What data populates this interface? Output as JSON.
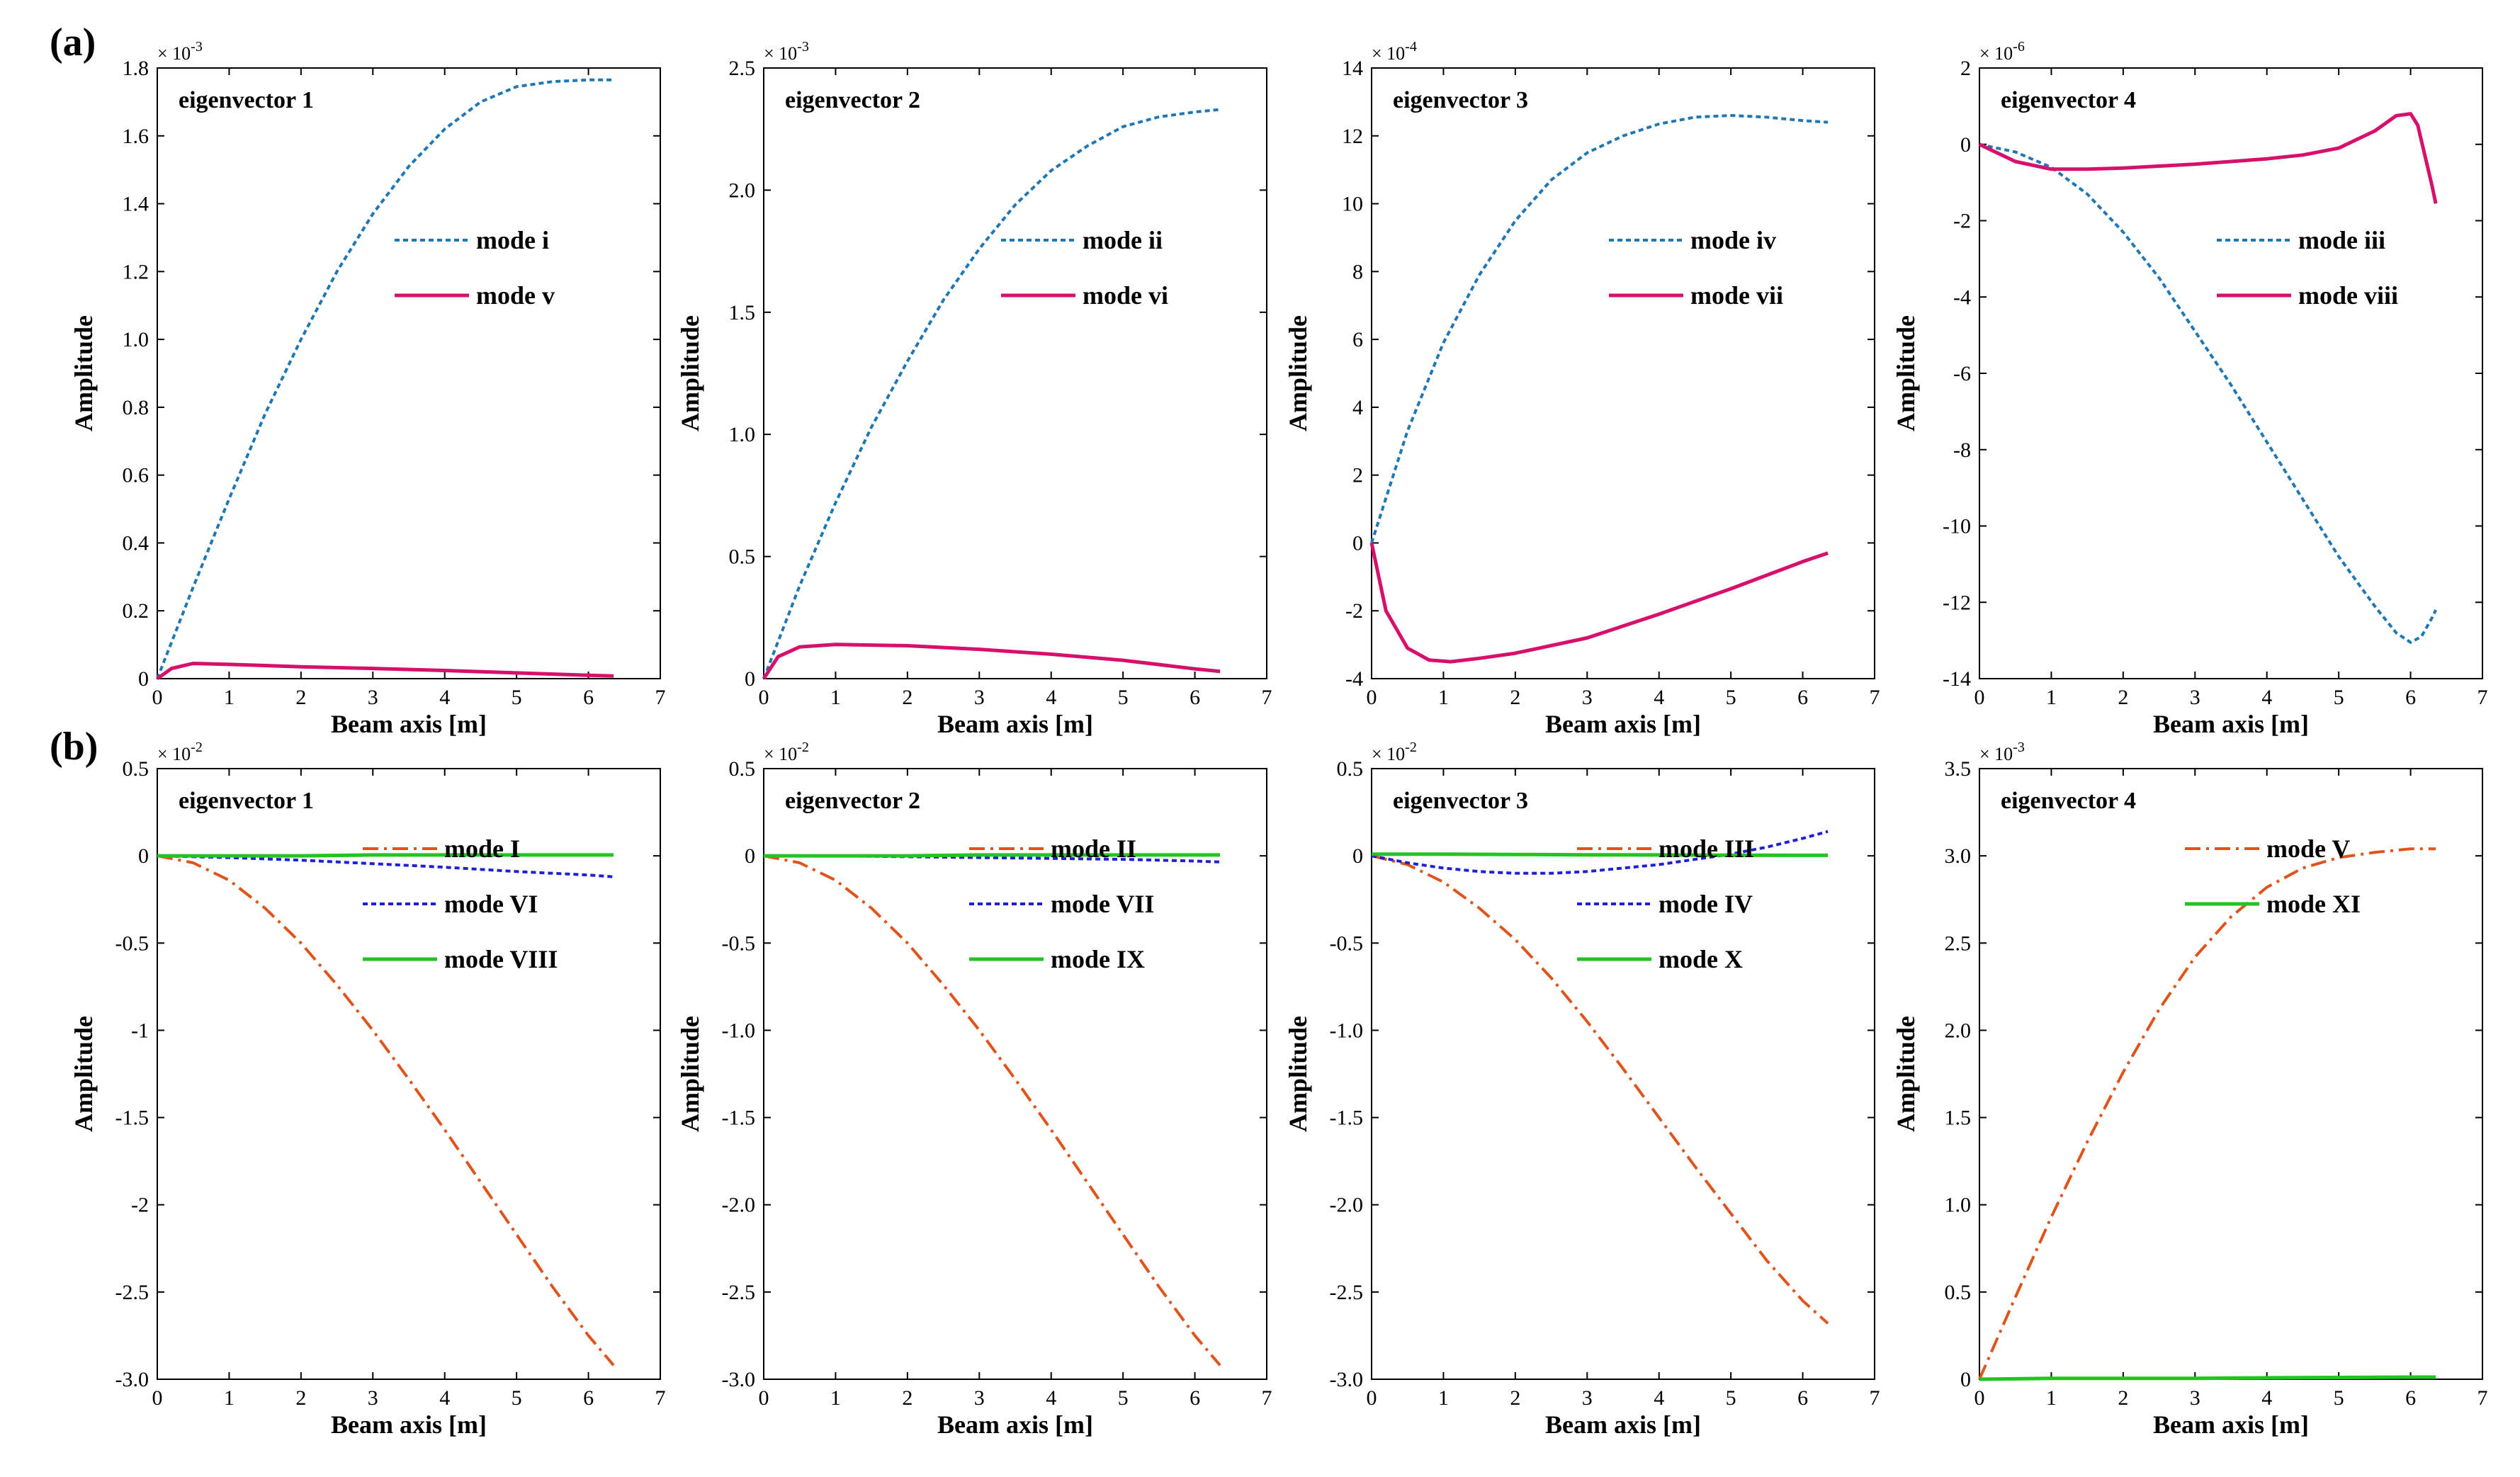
{
  "panel_labels": [
    "(a)",
    "(b)"
  ],
  "chart_data": [
    {
      "type": "line",
      "row": "a",
      "title": "eigenvector 1",
      "xlabel": "Beam axis [m]",
      "ylabel": "Amplitude",
      "sci_base": "× 10",
      "sci_exp": "-3",
      "xlim": [
        0,
        7
      ],
      "ylim": [
        0,
        1.8
      ],
      "xticks": [
        0,
        1,
        2,
        3,
        4,
        5,
        6,
        7
      ],
      "xtick_labels": [
        "0",
        "1",
        "2",
        "3",
        "4",
        "5",
        "6",
        "7"
      ],
      "yticks": [
        0,
        0.2,
        0.4,
        0.6,
        0.8,
        1.0,
        1.2,
        1.4,
        1.6,
        1.8
      ],
      "ytick_labels": [
        "0",
        "0.2",
        "0.4",
        "0.6",
        "0.8",
        "1.0",
        "1.2",
        "1.4",
        "1.6",
        "1.8"
      ],
      "series": [
        {
          "name": "mode i",
          "color": "#1f77b4",
          "style": "dotted",
          "x": [
            0,
            0.5,
            1,
            1.5,
            2,
            2.5,
            3,
            3.5,
            4,
            4.5,
            5,
            5.5,
            6,
            6.35
          ],
          "y": [
            0,
            0.27,
            0.53,
            0.78,
            1.0,
            1.2,
            1.37,
            1.51,
            1.62,
            1.7,
            1.745,
            1.76,
            1.765,
            1.765
          ]
        },
        {
          "name": "mode v",
          "color": "#d6106b",
          "style": "solid",
          "x": [
            0,
            0.2,
            0.5,
            1,
            2,
            3,
            4,
            5,
            6,
            6.35
          ],
          "y": [
            0,
            0.03,
            0.045,
            0.042,
            0.035,
            0.03,
            0.024,
            0.017,
            0.01,
            0.008
          ]
        }
      ]
    },
    {
      "type": "line",
      "row": "a",
      "title": "eigenvector 2",
      "xlabel": "Beam axis [m]",
      "ylabel": "Amplitude",
      "sci_base": "× 10",
      "sci_exp": "-3",
      "xlim": [
        0,
        7
      ],
      "ylim": [
        0,
        2.5
      ],
      "xticks": [
        0,
        1,
        2,
        3,
        4,
        5,
        6,
        7
      ],
      "xtick_labels": [
        "0",
        "1",
        "2",
        "3",
        "4",
        "5",
        "6",
        "7"
      ],
      "yticks": [
        0,
        0.5,
        1.0,
        1.5,
        2.0,
        2.5
      ],
      "ytick_labels": [
        "0",
        "0.5",
        "1.0",
        "1.5",
        "2.0",
        "2.5"
      ],
      "series": [
        {
          "name": "mode ii",
          "color": "#1f77b4",
          "style": "dotted",
          "x": [
            0,
            0.5,
            1,
            1.5,
            2,
            2.5,
            3,
            3.5,
            4,
            4.5,
            5,
            5.5,
            6,
            6.35
          ],
          "y": [
            0,
            0.38,
            0.72,
            1.03,
            1.3,
            1.55,
            1.76,
            1.94,
            2.08,
            2.18,
            2.26,
            2.3,
            2.32,
            2.33
          ]
        },
        {
          "name": "mode vi",
          "color": "#d6106b",
          "style": "solid",
          "x": [
            0,
            0.2,
            0.5,
            1,
            2,
            3,
            4,
            5,
            6,
            6.35
          ],
          "y": [
            0,
            0.09,
            0.13,
            0.14,
            0.135,
            0.12,
            0.1,
            0.075,
            0.04,
            0.03
          ]
        }
      ]
    },
    {
      "type": "line",
      "row": "a",
      "title": "eigenvector 3",
      "xlabel": "Beam axis [m]",
      "ylabel": "Amplitude",
      "sci_base": "× 10",
      "sci_exp": "-4",
      "xlim": [
        0,
        7
      ],
      "ylim": [
        -4,
        14
      ],
      "xticks": [
        0,
        1,
        2,
        3,
        4,
        5,
        6,
        7
      ],
      "xtick_labels": [
        "0",
        "1",
        "2",
        "3",
        "4",
        "5",
        "6",
        "7"
      ],
      "yticks": [
        -4,
        -2,
        0,
        2,
        4,
        6,
        8,
        10,
        12,
        14
      ],
      "ytick_labels": [
        "-4",
        "-2",
        "0",
        "2",
        "4",
        "6",
        "8",
        "10",
        "12",
        "14"
      ],
      "series": [
        {
          "name": "mode iv",
          "color": "#1f77b4",
          "style": "dotted",
          "x": [
            0,
            0.5,
            1,
            1.5,
            2,
            2.5,
            3,
            3.5,
            4,
            4.5,
            5,
            5.5,
            6,
            6.35
          ],
          "y": [
            0,
            3.3,
            5.9,
            7.9,
            9.5,
            10.7,
            11.5,
            12.0,
            12.35,
            12.55,
            12.6,
            12.55,
            12.45,
            12.4
          ]
        },
        {
          "name": "mode vii",
          "color": "#d6106b",
          "style": "solid",
          "x": [
            0,
            0.2,
            0.5,
            0.8,
            1.1,
            1.5,
            2,
            3,
            4,
            5,
            6,
            6.35
          ],
          "y": [
            0,
            -2.0,
            -3.1,
            -3.45,
            -3.5,
            -3.4,
            -3.25,
            -2.8,
            -2.1,
            -1.35,
            -0.55,
            -0.3
          ]
        }
      ]
    },
    {
      "type": "line",
      "row": "a",
      "title": "eigenvector 4",
      "xlabel": "Beam axis [m]",
      "ylabel": "Amplitude",
      "sci_base": "× 10",
      "sci_exp": "-6",
      "xlim": [
        0,
        7
      ],
      "ylim": [
        -14,
        2
      ],
      "xticks": [
        0,
        1,
        2,
        3,
        4,
        5,
        6,
        7
      ],
      "xtick_labels": [
        "0",
        "1",
        "2",
        "3",
        "4",
        "5",
        "6",
        "7"
      ],
      "yticks": [
        -14,
        -12,
        -10,
        -8,
        -6,
        -4,
        -2,
        0,
        2
      ],
      "ytick_labels": [
        "-14",
        "-12",
        "-10",
        "-8",
        "-6",
        "-4",
        "-2",
        "0",
        "2"
      ],
      "series": [
        {
          "name": "mode iii",
          "color": "#1f77b4",
          "style": "dotted",
          "x": [
            0,
            0.5,
            1,
            1.5,
            2,
            2.5,
            3,
            3.5,
            4,
            4.5,
            5,
            5.5,
            5.8,
            6.0,
            6.15,
            6.3,
            6.35
          ],
          "y": [
            0,
            -0.2,
            -0.6,
            -1.3,
            -2.3,
            -3.5,
            -4.9,
            -6.3,
            -7.8,
            -9.3,
            -10.8,
            -12.1,
            -12.8,
            -13.05,
            -12.9,
            -12.4,
            -12.2
          ]
        },
        {
          "name": "mode viii",
          "color": "#d6106b",
          "style": "solid",
          "x": [
            0,
            0.5,
            1,
            1.5,
            2,
            3,
            4,
            4.5,
            5,
            5.5,
            5.8,
            6.0,
            6.1,
            6.2,
            6.3,
            6.35
          ],
          "y": [
            0,
            -0.45,
            -0.65,
            -0.65,
            -0.62,
            -0.52,
            -0.38,
            -0.28,
            -0.1,
            0.35,
            0.75,
            0.8,
            0.5,
            -0.3,
            -1.1,
            -1.55
          ]
        }
      ]
    },
    {
      "type": "line",
      "row": "b",
      "title": "eigenvector 1",
      "xlabel": "Beam axis [m]",
      "ylabel": "Amplitude",
      "sci_base": "× 10",
      "sci_exp": "-2",
      "xlim": [
        0,
        7
      ],
      "ylim": [
        -3.0,
        0.5
      ],
      "xticks": [
        0,
        1,
        2,
        3,
        4,
        5,
        6,
        7
      ],
      "xtick_labels": [
        "0",
        "1",
        "2",
        "3",
        "4",
        "5",
        "6",
        "7"
      ],
      "yticks": [
        -3.0,
        -2.5,
        -2.0,
        -1.5,
        -1.0,
        -0.5,
        0,
        0.5
      ],
      "ytick_labels": [
        "-3.0",
        "-2.5",
        "-2",
        "-1.5",
        "-1",
        "-0.5",
        "0",
        "0.5"
      ],
      "series": [
        {
          "name": "mode I",
          "color": "#e0541b",
          "style": "dashdot",
          "x": [
            0,
            0.5,
            1,
            1.5,
            2,
            2.5,
            3,
            3.5,
            4,
            4.5,
            5,
            5.5,
            6,
            6.35
          ],
          "y": [
            0,
            -0.04,
            -0.14,
            -0.3,
            -0.5,
            -0.74,
            -1.0,
            -1.28,
            -1.57,
            -1.87,
            -2.17,
            -2.47,
            -2.75,
            -2.92
          ]
        },
        {
          "name": "mode VI",
          "color": "#1f1fd6",
          "style": "dotted",
          "x": [
            0,
            1,
            2,
            3,
            4,
            5,
            6,
            6.35
          ],
          "y": [
            0,
            -0.01,
            -0.025,
            -0.045,
            -0.065,
            -0.09,
            -0.11,
            -0.12
          ]
        },
        {
          "name": "mode VIII",
          "color": "#22c422",
          "style": "solid",
          "x": [
            0,
            1,
            2,
            3,
            4,
            5,
            6,
            6.35
          ],
          "y": [
            0,
            0,
            0,
            0.005,
            0.005,
            0.005,
            0.005,
            0.005
          ]
        }
      ]
    },
    {
      "type": "line",
      "row": "b",
      "title": "eigenvector 2",
      "xlabel": "Beam axis [m]",
      "ylabel": "Amplitude",
      "sci_base": "× 10",
      "sci_exp": "-2",
      "xlim": [
        0,
        7
      ],
      "ylim": [
        -3.0,
        0.5
      ],
      "xticks": [
        0,
        1,
        2,
        3,
        4,
        5,
        6,
        7
      ],
      "xtick_labels": [
        "0",
        "1",
        "2",
        "3",
        "4",
        "5",
        "6",
        "7"
      ],
      "yticks": [
        -3.0,
        -2.5,
        -2.0,
        -1.5,
        -1.0,
        -0.5,
        0,
        0.5
      ],
      "ytick_labels": [
        "-3.0",
        "-2.5",
        "-2.0",
        "-1.5",
        "-1.0",
        "-0.5",
        "0",
        "0.5"
      ],
      "series": [
        {
          "name": "mode II",
          "color": "#e0541b",
          "style": "dashdot",
          "x": [
            0,
            0.5,
            1,
            1.5,
            2,
            2.5,
            3,
            3.5,
            4,
            4.5,
            5,
            5.5,
            6,
            6.35
          ],
          "y": [
            0,
            -0.04,
            -0.14,
            -0.3,
            -0.5,
            -0.74,
            -1.0,
            -1.28,
            -1.57,
            -1.87,
            -2.17,
            -2.47,
            -2.75,
            -2.92
          ]
        },
        {
          "name": "mode VII",
          "color": "#1f1fd6",
          "style": "dotted",
          "x": [
            0,
            1,
            2,
            3,
            4,
            5,
            6,
            6.35
          ],
          "y": [
            0,
            0,
            -0.005,
            -0.01,
            -0.015,
            -0.02,
            -0.03,
            -0.035
          ]
        },
        {
          "name": "mode IX",
          "color": "#22c422",
          "style": "solid",
          "x": [
            0,
            1,
            2,
            3,
            4,
            5,
            6,
            6.35
          ],
          "y": [
            0,
            0,
            0,
            0.005,
            0.005,
            0.005,
            0.005,
            0.005
          ]
        }
      ]
    },
    {
      "type": "line",
      "row": "b",
      "title": "eigenvector 3",
      "xlabel": "Beam axis [m]",
      "ylabel": "Amplitude",
      "sci_base": "× 10",
      "sci_exp": "-2",
      "xlim": [
        0,
        7
      ],
      "ylim": [
        -3.0,
        0.5
      ],
      "xticks": [
        0,
        1,
        2,
        3,
        4,
        5,
        6,
        7
      ],
      "xtick_labels": [
        "0",
        "1",
        "2",
        "3",
        "4",
        "5",
        "6",
        "7"
      ],
      "yticks": [
        -3.0,
        -2.5,
        -2.0,
        -1.5,
        -1.0,
        -0.5,
        0,
        0.5
      ],
      "ytick_labels": [
        "-3.0",
        "-2.5",
        "-2.0",
        "-1.5",
        "-1.0",
        "-0.5",
        "0",
        "0.5"
      ],
      "series": [
        {
          "name": "mode III",
          "color": "#e0541b",
          "style": "dashdot",
          "x": [
            0,
            0.5,
            1,
            1.5,
            2,
            2.5,
            3,
            3.5,
            4,
            4.5,
            5,
            5.5,
            6,
            6.35
          ],
          "y": [
            0,
            -0.05,
            -0.15,
            -0.3,
            -0.48,
            -0.7,
            -0.95,
            -1.22,
            -1.5,
            -1.78,
            -2.05,
            -2.32,
            -2.55,
            -2.68
          ]
        },
        {
          "name": "mode IV",
          "color": "#1f1fd6",
          "style": "dotted",
          "x": [
            0,
            0.5,
            1,
            1.5,
            2,
            2.5,
            3,
            3.5,
            4,
            4.5,
            5,
            5.5,
            6,
            6.35
          ],
          "y": [
            0,
            -0.04,
            -0.07,
            -0.09,
            -0.1,
            -0.1,
            -0.09,
            -0.07,
            -0.05,
            -0.02,
            0.01,
            0.05,
            0.1,
            0.14
          ]
        },
        {
          "name": "mode X",
          "color": "#22c422",
          "style": "solid",
          "x": [
            0,
            1,
            2,
            3,
            4,
            5,
            6,
            6.35
          ],
          "y": [
            0.01,
            0.01,
            0.008,
            0.006,
            0.005,
            0.004,
            0.003,
            0.003
          ]
        }
      ]
    },
    {
      "type": "line",
      "row": "b",
      "title": "eigenvector 4",
      "xlabel": "Beam axis [m]",
      "ylabel": "Amplitude",
      "sci_base": "× 10",
      "sci_exp": "-3",
      "xlim": [
        0,
        7
      ],
      "ylim": [
        0,
        3.5
      ],
      "xticks": [
        0,
        1,
        2,
        3,
        4,
        5,
        6,
        7
      ],
      "xtick_labels": [
        "0",
        "1",
        "2",
        "3",
        "4",
        "5",
        "6",
        "7"
      ],
      "yticks": [
        0,
        0.5,
        1.0,
        1.5,
        2.0,
        2.5,
        3.0,
        3.5
      ],
      "ytick_labels": [
        "0",
        "0.5",
        "1.0",
        "1.5",
        "2.0",
        "2.5",
        "3.0",
        "3.5"
      ],
      "series": [
        {
          "name": "mode V",
          "color": "#e0541b",
          "style": "dashdot",
          "x": [
            0,
            0.5,
            1,
            1.5,
            2,
            2.5,
            3,
            3.5,
            4,
            4.5,
            5,
            5.5,
            6,
            6.35
          ],
          "y": [
            0,
            0.47,
            0.93,
            1.36,
            1.76,
            2.12,
            2.42,
            2.65,
            2.82,
            2.93,
            2.99,
            3.02,
            3.04,
            3.04
          ]
        },
        {
          "name": "mode XI",
          "color": "#22c422",
          "style": "solid",
          "x": [
            0,
            1,
            2,
            3,
            4,
            5,
            6,
            6.35
          ],
          "y": [
            0,
            0.005,
            0.005,
            0.005,
            0.008,
            0.01,
            0.012,
            0.012
          ]
        }
      ]
    }
  ]
}
